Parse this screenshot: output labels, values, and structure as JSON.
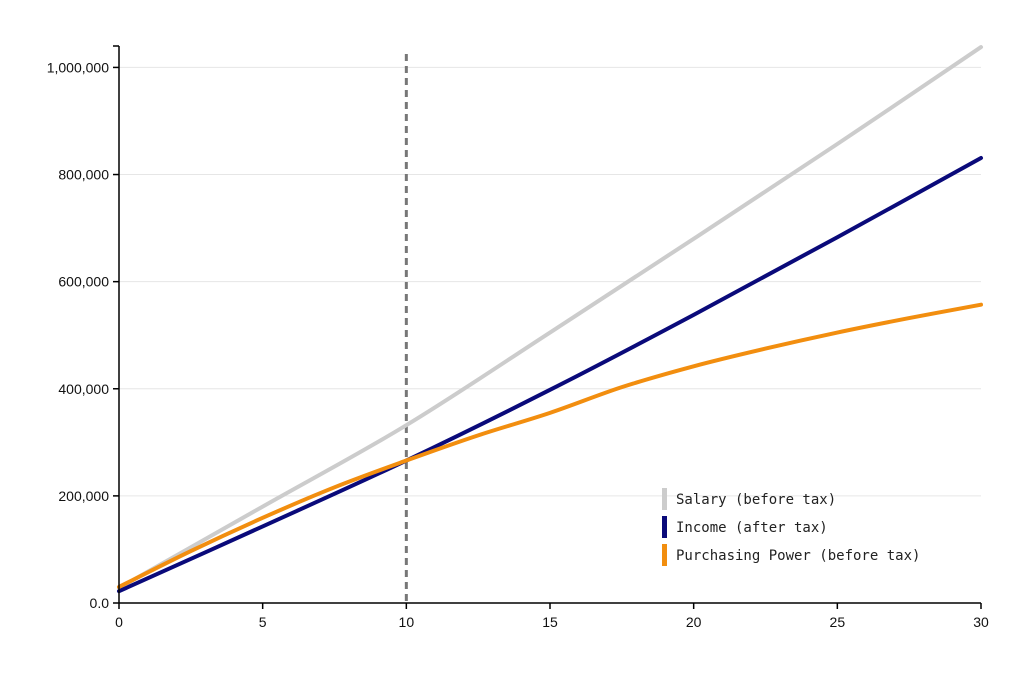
{
  "chart_data": {
    "type": "line",
    "title": "",
    "xlabel": "",
    "ylabel": "",
    "xlim": [
      0,
      30
    ],
    "ylim": [
      0,
      1040000
    ],
    "x_ticks": [
      0,
      5,
      10,
      15,
      20,
      25,
      30
    ],
    "x_tick_labels": [
      "0",
      "5",
      "10",
      "15",
      "20",
      "25",
      "30"
    ],
    "y_ticks": [
      0,
      200000,
      400000,
      600000,
      800000,
      1000000
    ],
    "y_tick_labels": [
      "0.0",
      "200,000",
      "400,000",
      "600,000",
      "800,000",
      "1,000,000"
    ],
    "grid": "horizontal",
    "legend_position": "bottom-right",
    "reference_line": {
      "x": 10,
      "style": "dashed",
      "color": "#777777"
    },
    "series": [
      {
        "name": "Salary (before tax)",
        "color": "#cccccc",
        "x": [
          0,
          5,
          10,
          15,
          20,
          25,
          30
        ],
        "y": [
          28000,
          180000,
          332000,
          505000,
          680000,
          857000,
          1038000
        ]
      },
      {
        "name": "Income (after tax)",
        "color": "#0a0a7a",
        "x": [
          0,
          5,
          10,
          15,
          20,
          25,
          30
        ],
        "y": [
          22000,
          143000,
          266000,
          398000,
          538000,
          683000,
          831000
        ]
      },
      {
        "name": "Purchasing Power (before tax)",
        "color": "#f28e0f",
        "x": [
          0,
          2.5,
          5,
          7.5,
          10,
          12.5,
          15,
          17.5,
          20,
          22.5,
          25,
          27.5,
          30
        ],
        "y": [
          30000,
          97000,
          159000,
          216000,
          266000,
          313000,
          355000,
          403000,
          442000,
          475000,
          505000,
          532000,
          557000
        ]
      }
    ]
  }
}
